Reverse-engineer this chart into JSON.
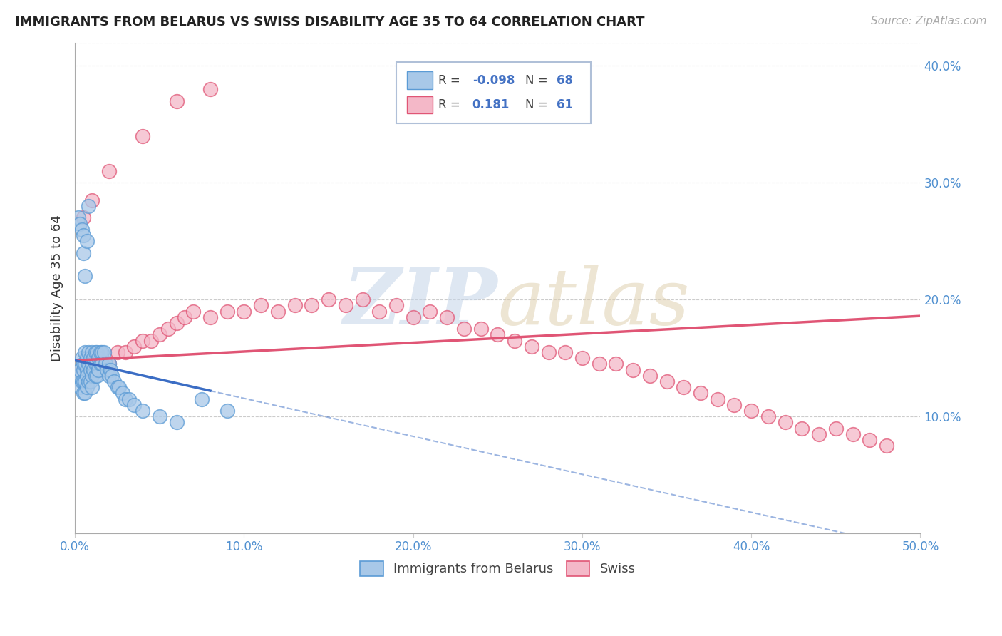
{
  "title": "IMMIGRANTS FROM BELARUS VS SWISS DISABILITY AGE 35 TO 64 CORRELATION CHART",
  "source": "Source: ZipAtlas.com",
  "ylabel": "Disability Age 35 to 64",
  "xlim": [
    0.0,
    0.5
  ],
  "ylim": [
    0.0,
    0.42
  ],
  "xticks": [
    0.0,
    0.1,
    0.2,
    0.3,
    0.4,
    0.5
  ],
  "yticks": [
    0.0,
    0.1,
    0.2,
    0.3,
    0.4
  ],
  "xtick_labels": [
    "0.0%",
    "10.0%",
    "20.0%",
    "30.0%",
    "40.0%",
    "50.0%"
  ],
  "ytick_labels_right": [
    "",
    "10.0%",
    "20.0%",
    "30.0%",
    "40.0%"
  ],
  "legend_labels": [
    "Immigrants from Belarus",
    "Swiss"
  ],
  "blue_color": "#a8c8e8",
  "blue_edge_color": "#5b9bd5",
  "pink_color": "#f4b8c8",
  "pink_edge_color": "#e05575",
  "blue_line_color": "#3b6dc4",
  "pink_line_color": "#e05575",
  "background_color": "#ffffff",
  "blue_scatter_x": [
    0.002,
    0.003,
    0.003,
    0.004,
    0.004,
    0.005,
    0.005,
    0.005,
    0.005,
    0.006,
    0.006,
    0.006,
    0.006,
    0.007,
    0.007,
    0.007,
    0.007,
    0.008,
    0.008,
    0.008,
    0.009,
    0.009,
    0.009,
    0.01,
    0.01,
    0.01,
    0.01,
    0.011,
    0.011,
    0.012,
    0.012,
    0.012,
    0.013,
    0.013,
    0.013,
    0.014,
    0.014,
    0.015,
    0.015,
    0.016,
    0.016,
    0.017,
    0.018,
    0.019,
    0.02,
    0.02,
    0.021,
    0.022,
    0.023,
    0.025,
    0.026,
    0.028,
    0.03,
    0.032,
    0.035,
    0.04,
    0.05,
    0.06,
    0.075,
    0.09,
    0.002,
    0.003,
    0.004,
    0.005,
    0.005,
    0.006,
    0.007,
    0.008
  ],
  "blue_scatter_y": [
    0.135,
    0.14,
    0.125,
    0.13,
    0.15,
    0.14,
    0.145,
    0.13,
    0.12,
    0.145,
    0.155,
    0.13,
    0.12,
    0.15,
    0.14,
    0.135,
    0.125,
    0.155,
    0.145,
    0.13,
    0.15,
    0.14,
    0.13,
    0.155,
    0.145,
    0.135,
    0.125,
    0.15,
    0.14,
    0.155,
    0.145,
    0.135,
    0.155,
    0.145,
    0.135,
    0.15,
    0.14,
    0.155,
    0.145,
    0.155,
    0.145,
    0.155,
    0.145,
    0.14,
    0.145,
    0.135,
    0.14,
    0.135,
    0.13,
    0.125,
    0.125,
    0.12,
    0.115,
    0.115,
    0.11,
    0.105,
    0.1,
    0.095,
    0.115,
    0.105,
    0.27,
    0.265,
    0.26,
    0.255,
    0.24,
    0.22,
    0.25,
    0.28
  ],
  "pink_scatter_x": [
    0.005,
    0.01,
    0.015,
    0.02,
    0.025,
    0.03,
    0.035,
    0.04,
    0.045,
    0.05,
    0.055,
    0.06,
    0.065,
    0.07,
    0.08,
    0.09,
    0.1,
    0.11,
    0.12,
    0.13,
    0.14,
    0.15,
    0.16,
    0.17,
    0.18,
    0.19,
    0.2,
    0.21,
    0.22,
    0.23,
    0.24,
    0.25,
    0.26,
    0.27,
    0.28,
    0.29,
    0.3,
    0.31,
    0.32,
    0.33,
    0.34,
    0.35,
    0.36,
    0.37,
    0.38,
    0.39,
    0.4,
    0.41,
    0.42,
    0.43,
    0.44,
    0.45,
    0.46,
    0.47,
    0.48,
    0.005,
    0.01,
    0.02,
    0.04,
    0.06,
    0.08
  ],
  "pink_scatter_y": [
    0.14,
    0.145,
    0.14,
    0.145,
    0.155,
    0.155,
    0.16,
    0.165,
    0.165,
    0.17,
    0.175,
    0.18,
    0.185,
    0.19,
    0.185,
    0.19,
    0.19,
    0.195,
    0.19,
    0.195,
    0.195,
    0.2,
    0.195,
    0.2,
    0.19,
    0.195,
    0.185,
    0.19,
    0.185,
    0.175,
    0.175,
    0.17,
    0.165,
    0.16,
    0.155,
    0.155,
    0.15,
    0.145,
    0.145,
    0.14,
    0.135,
    0.13,
    0.125,
    0.12,
    0.115,
    0.11,
    0.105,
    0.1,
    0.095,
    0.09,
    0.085,
    0.09,
    0.085,
    0.08,
    0.075,
    0.27,
    0.285,
    0.31,
    0.34,
    0.37,
    0.38
  ]
}
